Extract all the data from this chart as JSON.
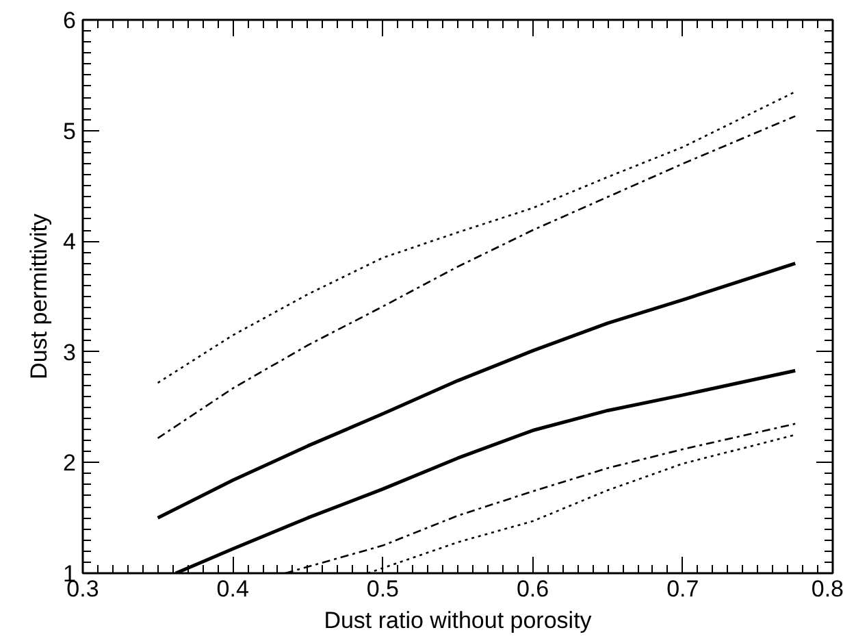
{
  "chart_data": {
    "type": "line",
    "xlabel": "Dust ratio without porosity",
    "ylabel": "Dust permittivity",
    "xlim": [
      0.3,
      0.8
    ],
    "ylim": [
      1,
      6
    ],
    "xticks": [
      0.3,
      0.4,
      0.5,
      0.6,
      0.7,
      0.8
    ],
    "yticks": [
      1,
      2,
      3,
      4,
      5,
      6
    ],
    "grid": false,
    "marker": "none",
    "series": [
      {
        "color": "#000000",
        "line_style": "dotted",
        "x": [
          0.35,
          0.4,
          0.45,
          0.5,
          0.55,
          0.6,
          0.65,
          0.7,
          0.775
        ],
        "values": [
          2.72,
          3.15,
          3.52,
          3.85,
          4.08,
          4.3,
          4.58,
          4.85,
          5.35
        ]
      },
      {
        "color": "#000000",
        "line_style": "dashdot",
        "x": [
          0.35,
          0.4,
          0.45,
          0.5,
          0.55,
          0.6,
          0.65,
          0.7,
          0.775
        ],
        "values": [
          2.22,
          2.67,
          3.06,
          3.41,
          3.77,
          4.1,
          4.4,
          4.7,
          5.13
        ]
      },
      {
        "color": "#000000",
        "line_style": "solid",
        "x": [
          0.35,
          0.4,
          0.45,
          0.5,
          0.55,
          0.6,
          0.65,
          0.7,
          0.775
        ],
        "values": [
          1.5,
          1.84,
          2.15,
          2.44,
          2.74,
          3.01,
          3.26,
          3.47,
          3.8
        ]
      },
      {
        "color": "#000000",
        "line_style": "solid",
        "x": [
          0.362,
          0.4,
          0.45,
          0.5,
          0.55,
          0.6,
          0.65,
          0.7,
          0.775
        ],
        "values": [
          1.0,
          1.22,
          1.5,
          1.76,
          2.04,
          2.29,
          2.47,
          2.61,
          2.83
        ]
      },
      {
        "color": "#000000",
        "line_style": "dashdot",
        "x": [
          0.435,
          0.5,
          0.55,
          0.6,
          0.65,
          0.7,
          0.775
        ],
        "values": [
          1.0,
          1.25,
          1.52,
          1.74,
          1.95,
          2.12,
          2.35
        ]
      },
      {
        "color": "#000000",
        "line_style": "dotted",
        "x": [
          0.49,
          0.55,
          0.6,
          0.65,
          0.7,
          0.775
        ],
        "values": [
          1.0,
          1.28,
          1.47,
          1.75,
          1.99,
          2.25
        ]
      }
    ]
  }
}
